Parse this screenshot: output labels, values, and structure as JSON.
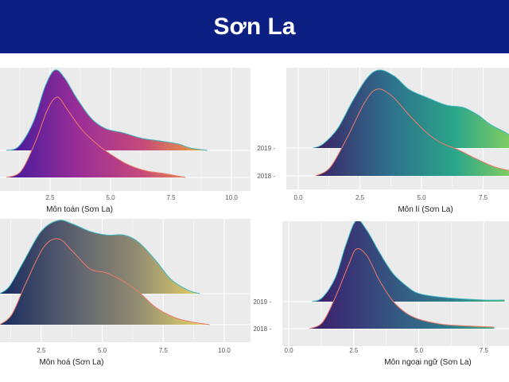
{
  "slide": {
    "title": "Sơn La"
  },
  "chart_data": [
    {
      "type": "ridgeline",
      "xlabel": "Môn toán (Sơn La)",
      "x_ticks": [
        "2.5",
        "5.0",
        "7.5",
        "10.0"
      ],
      "y_ticks": [],
      "colors": [
        "#4a1c9c",
        "#9a2e97",
        "#c64a7a",
        "#f2a93b"
      ],
      "series": [
        {
          "name": "2019",
          "outline": "#3cb8c0",
          "density": [
            [
              0.7,
              0
            ],
            [
              1.2,
              0.05
            ],
            [
              1.8,
              0.35
            ],
            [
              2.3,
              0.8
            ],
            [
              2.7,
              1
            ],
            [
              3.1,
              0.9
            ],
            [
              3.6,
              0.65
            ],
            [
              4.2,
              0.4
            ],
            [
              4.8,
              0.27
            ],
            [
              5.5,
              0.22
            ],
            [
              6.3,
              0.15
            ],
            [
              7,
              0.12
            ],
            [
              7.8,
              0.08
            ],
            [
              8.3,
              0.03
            ],
            [
              9,
              0
            ]
          ]
        },
        {
          "name": "2018",
          "outline": "#f07a6a",
          "density": [
            [
              0.7,
              0
            ],
            [
              1.3,
              0.08
            ],
            [
              1.9,
              0.45
            ],
            [
              2.4,
              0.85
            ],
            [
              2.8,
              1
            ],
            [
              3.2,
              0.85
            ],
            [
              3.8,
              0.6
            ],
            [
              4.5,
              0.4
            ],
            [
              5.2,
              0.25
            ],
            [
              5.8,
              0.15
            ],
            [
              6.5,
              0.08
            ],
            [
              7.2,
              0.05
            ],
            [
              8.1,
              0
            ]
          ]
        }
      ]
    },
    {
      "type": "ridgeline",
      "xlabel": "Môn lí (Sơn La)",
      "x_ticks": [
        "0.0",
        "2.5",
        "5.0",
        "7.5"
      ],
      "y_ticks": [
        "2019",
        "2018"
      ],
      "colors": [
        "#3a2a6a",
        "#2f6f8c",
        "#2aa58a",
        "#8fd45a"
      ],
      "series": [
        {
          "name": "2019",
          "outline": "#3cb8c0",
          "density": [
            [
              0.6,
              0
            ],
            [
              1,
              0.05
            ],
            [
              1.6,
              0.25
            ],
            [
              2.2,
              0.6
            ],
            [
              2.8,
              0.9
            ],
            [
              3.3,
              1
            ],
            [
              3.9,
              0.92
            ],
            [
              4.5,
              0.75
            ],
            [
              5.2,
              0.65
            ],
            [
              6,
              0.55
            ],
            [
              6.7,
              0.52
            ],
            [
              7.3,
              0.42
            ],
            [
              7.8,
              0.3
            ],
            [
              8.4,
              0.2
            ],
            [
              8.8,
              0.12
            ]
          ]
        },
        {
          "name": "2018",
          "outline": "#f07a6a",
          "density": [
            [
              0.7,
              0
            ],
            [
              1.3,
              0.1
            ],
            [
              2,
              0.45
            ],
            [
              2.7,
              0.85
            ],
            [
              3.2,
              1
            ],
            [
              3.8,
              0.92
            ],
            [
              4.5,
              0.7
            ],
            [
              5.2,
              0.5
            ],
            [
              5.8,
              0.38
            ],
            [
              6.5,
              0.3
            ],
            [
              7.2,
              0.2
            ],
            [
              8,
              0.1
            ],
            [
              8.8,
              0.05
            ]
          ]
        }
      ]
    },
    {
      "type": "ridgeline",
      "xlabel": "Môn hoá (Sơn La)",
      "x_ticks": [
        "2.5",
        "5.0",
        "7.5",
        "10.0"
      ],
      "y_ticks": [],
      "colors": [
        "#1d2f60",
        "#5a5f6e",
        "#8f8a72",
        "#e2cf6a"
      ],
      "series": [
        {
          "name": "2019",
          "outline": "#3cb8c0",
          "density": [
            [
              0.8,
              0
            ],
            [
              1.2,
              0.1
            ],
            [
              1.8,
              0.45
            ],
            [
              2.5,
              0.85
            ],
            [
              3.2,
              1
            ],
            [
              3.8,
              0.95
            ],
            [
              4.5,
              0.85
            ],
            [
              5.2,
              0.8
            ],
            [
              5.9,
              0.8
            ],
            [
              6.5,
              0.7
            ],
            [
              7.2,
              0.45
            ],
            [
              7.8,
              0.2
            ],
            [
              8.5,
              0.05
            ],
            [
              9,
              0
            ]
          ]
        },
        {
          "name": "2018",
          "outline": "#f07a6a",
          "density": [
            [
              0.8,
              0
            ],
            [
              1.3,
              0.12
            ],
            [
              1.9,
              0.5
            ],
            [
              2.6,
              0.9
            ],
            [
              3.2,
              1
            ],
            [
              3.8,
              0.85
            ],
            [
              4.5,
              0.65
            ],
            [
              5.2,
              0.6
            ],
            [
              5.9,
              0.5
            ],
            [
              6.5,
              0.38
            ],
            [
              7.2,
              0.2
            ],
            [
              8,
              0.08
            ],
            [
              8.7,
              0.03
            ],
            [
              9.4,
              0
            ]
          ]
        }
      ]
    },
    {
      "type": "ridgeline",
      "xlabel": "Môn ngoại ngữ (Sơn La)",
      "x_ticks": [
        "0.0",
        "2.5",
        "5.0",
        "7.5"
      ],
      "y_ticks": [
        "2019",
        "2018"
      ],
      "colors": [
        "#3b1e6c",
        "#36507f",
        "#2f7f8e",
        "#5ec96a"
      ],
      "series": [
        {
          "name": "2019",
          "outline": "#3cb8c0",
          "density": [
            [
              0.9,
              0
            ],
            [
              1.3,
              0.05
            ],
            [
              1.8,
              0.3
            ],
            [
              2.2,
              0.7
            ],
            [
              2.6,
              1
            ],
            [
              3,
              0.88
            ],
            [
              3.5,
              0.6
            ],
            [
              4,
              0.35
            ],
            [
              4.5,
              0.2
            ],
            [
              5,
              0.1
            ],
            [
              6,
              0.05
            ],
            [
              7.5,
              0.02
            ],
            [
              8.3,
              0.02
            ]
          ]
        },
        {
          "name": "2018",
          "outline": "#f07a6a",
          "density": [
            [
              0.8,
              0
            ],
            [
              1.3,
              0.08
            ],
            [
              1.8,
              0.4
            ],
            [
              2.3,
              0.8
            ],
            [
              2.6,
              1
            ],
            [
              3,
              0.92
            ],
            [
              3.5,
              0.6
            ],
            [
              4,
              0.35
            ],
            [
              4.5,
              0.2
            ],
            [
              5,
              0.12
            ],
            [
              5.8,
              0.06
            ],
            [
              6.5,
              0.04
            ],
            [
              7.9,
              0.02
            ]
          ]
        }
      ]
    }
  ]
}
